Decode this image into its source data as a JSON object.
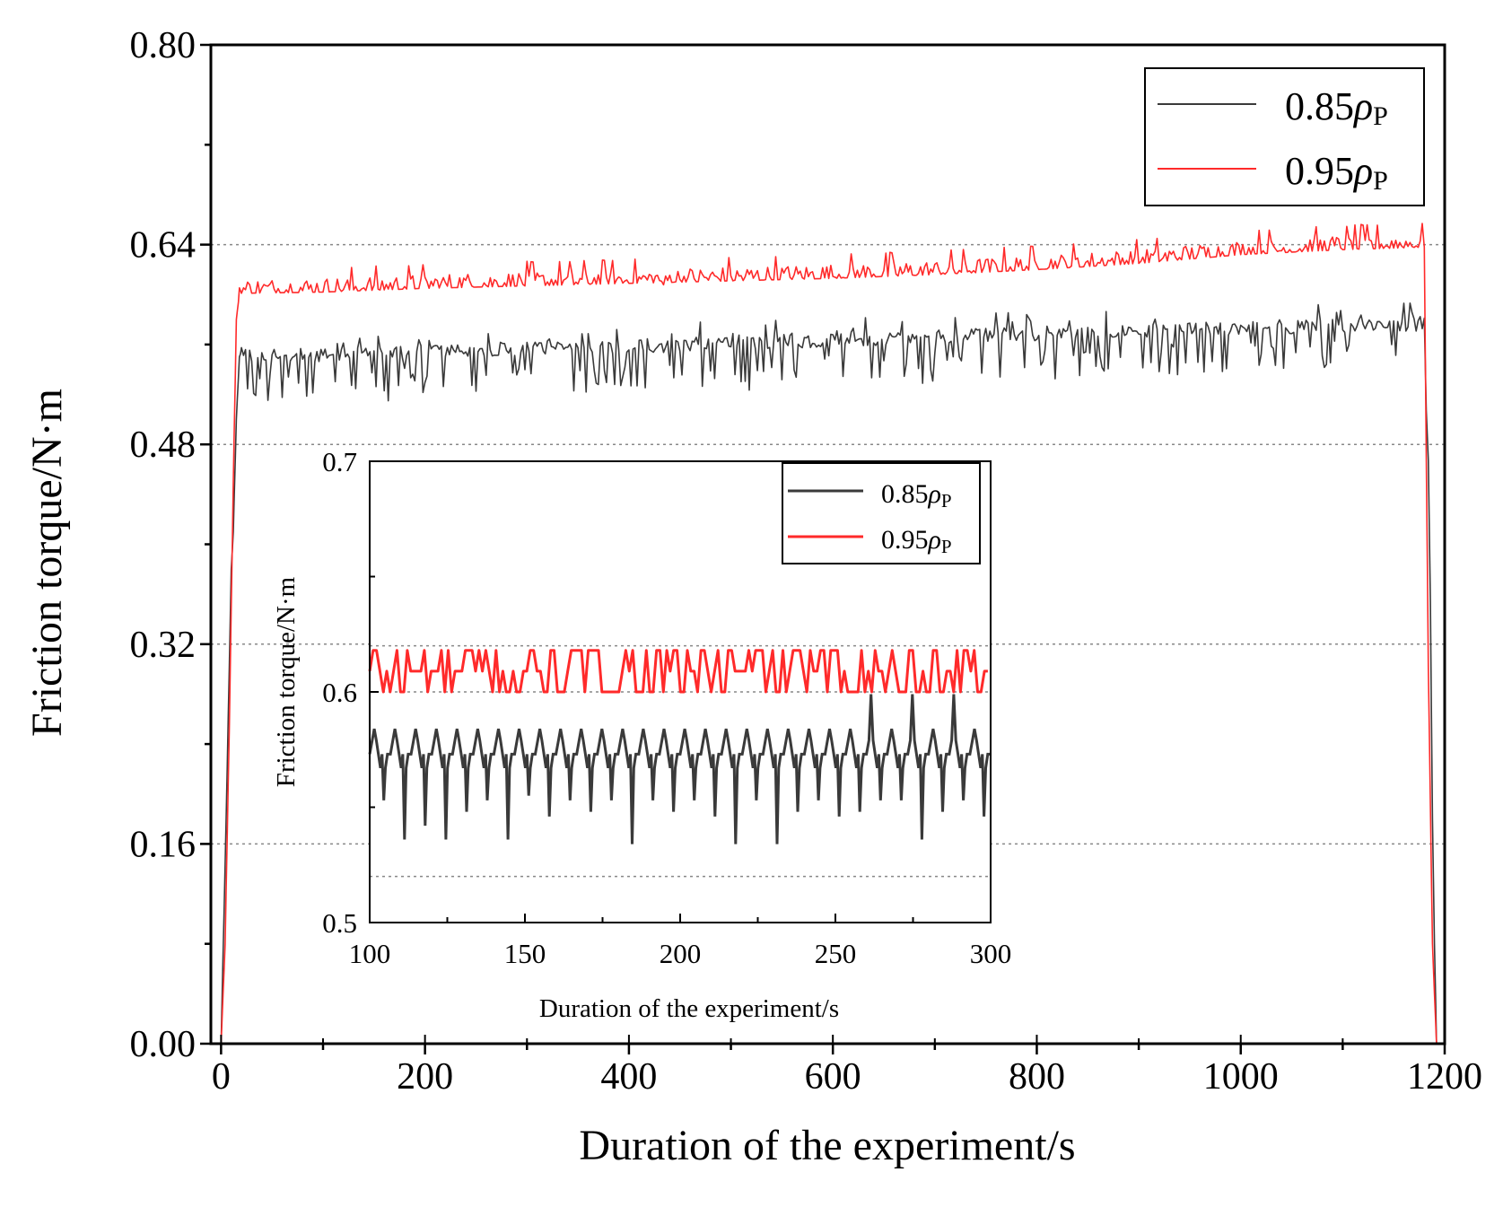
{
  "chart_data": [
    {
      "id": "main",
      "type": "line",
      "title": "",
      "xlabel": "Duration of the experiment/s",
      "ylabel": "Friction torque/N·m",
      "xlim": [
        -10,
        1200
      ],
      "ylim": [
        0.0,
        0.8
      ],
      "xticks": [
        0,
        200,
        400,
        600,
        800,
        1000,
        1200
      ],
      "xtick_labels": [
        "0",
        "200",
        "400",
        "600",
        "800",
        "1000",
        "1200"
      ],
      "yticks": [
        0.0,
        0.16,
        0.32,
        0.48,
        0.64,
        0.8
      ],
      "ytick_labels": [
        "0.00",
        "0.16",
        "0.32",
        "0.48",
        "0.64",
        "0.80"
      ],
      "grid": "horizontal dotted at y ticks",
      "legend_position": "top-right",
      "series": [
        {
          "name": "0.85ρp",
          "label_base": "0.85",
          "label_sym": "ρ",
          "label_sub": "P",
          "color": "#3a3a3a",
          "x": [
            0,
            5,
            10,
            12,
            15,
            18,
            20,
            30,
            100,
            200,
            300,
            400,
            500,
            600,
            700,
            800,
            900,
            1000,
            1100,
            1180,
            1185,
            1188,
            1190,
            1192
          ],
          "y": [
            0.0,
            0.18,
            0.38,
            0.41,
            0.5,
            0.55,
            0.555,
            0.552,
            0.553,
            0.556,
            0.558,
            0.56,
            0.562,
            0.565,
            0.568,
            0.57,
            0.572,
            0.575,
            0.576,
            0.578,
            0.44,
            0.18,
            0.08,
            0.0
          ],
          "noise_amp": 0.016,
          "dip_depth": 0.032
        },
        {
          "name": "0.95ρp",
          "label_base": "0.95",
          "label_sym": "ρ",
          "label_sub": "P",
          "color": "#ff2a2a",
          "x": [
            0,
            4,
            8,
            12,
            15,
            18,
            100,
            200,
            300,
            400,
            500,
            600,
            700,
            800,
            900,
            1000,
            1100,
            1180,
            1184,
            1188,
            1192
          ],
          "y": [
            0.0,
            0.08,
            0.25,
            0.45,
            0.58,
            0.601,
            0.602,
            0.605,
            0.607,
            0.609,
            0.611,
            0.613,
            0.616,
            0.62,
            0.625,
            0.632,
            0.636,
            0.638,
            0.3,
            0.08,
            0.0
          ],
          "noise_amp": 0.01,
          "dip_depth": 0.0
        }
      ]
    },
    {
      "id": "inset",
      "type": "line",
      "title": "",
      "xlabel": "Duration of the experiment/s",
      "ylabel": "Friction torque/N·m",
      "xlim": [
        100,
        300
      ],
      "ylim": [
        0.5,
        0.7
      ],
      "xticks": [
        100,
        150,
        200,
        250,
        300
      ],
      "xtick_labels": [
        "100",
        "150",
        "200",
        "250",
        "300"
      ],
      "yticks": [
        0.5,
        0.6,
        0.7
      ],
      "ytick_labels": [
        "0.5",
        "0.6",
        "0.7"
      ],
      "legend_position": "top-right",
      "series": [
        {
          "name": "0.85ρp",
          "label_base": "0.85",
          "label_sym": "ρ",
          "label_sub": "P",
          "color": "#3a3a3a",
          "base": 0.573,
          "high": 0.579,
          "low": 0.567,
          "dip_values": [
            0.553,
            0.536,
            0.542,
            0.536,
            0.548,
            0.553,
            0.536,
            0.555,
            0.546,
            0.553,
            0.548,
            0.553,
            0.534,
            0.553,
            0.548,
            0.553,
            0.546,
            0.534,
            0.553,
            0.534,
            0.548,
            0.553,
            0.546,
            0.548,
            0.553,
            0.553,
            0.536,
            0.548,
            0.553,
            0.546
          ],
          "peak_values": [
            0.584,
            0.584,
            0.584,
            0.584,
            0.584,
            0.584,
            0.584,
            0.584,
            0.584,
            0.584,
            0.584,
            0.584,
            0.584,
            0.584,
            0.584,
            0.584,
            0.584,
            0.584,
            0.584,
            0.584,
            0.584,
            0.584,
            0.584,
            0.584,
            0.599,
            0.584,
            0.599,
            0.584,
            0.599,
            0.584
          ]
        },
        {
          "name": "0.95ρp",
          "label_base": "0.95",
          "label_sym": "ρ",
          "label_sub": "P",
          "color": "#ff2a2a",
          "low": 0.6,
          "high": 0.618,
          "mid": 0.609
        }
      ]
    }
  ]
}
